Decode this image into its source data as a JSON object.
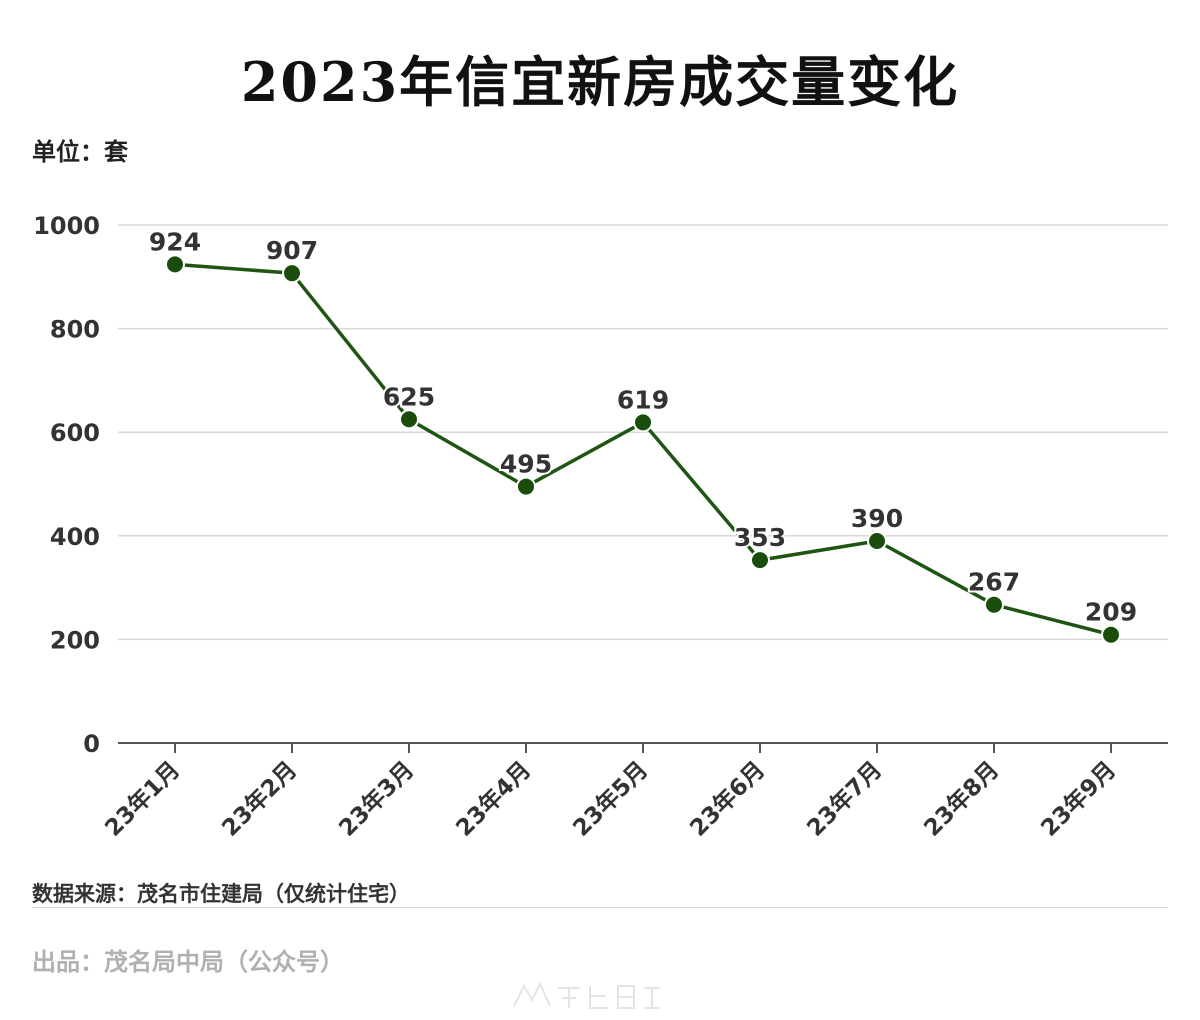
{
  "header": {
    "title": "2023年信宜新房成交量变化",
    "unit": "单位：套"
  },
  "footer": {
    "source": "数据来源：茂名市住建局（仅统计住宅）",
    "producer": "出品：茂名局中局（公众号）"
  },
  "colors": {
    "line": "#1f5512",
    "marker": "#1a4d0b",
    "grid": "#d9d9d9",
    "axis": "#555555",
    "label": "#333333"
  },
  "chart_data": {
    "type": "line",
    "categories": [
      "23年1月",
      "23年2月",
      "23年3月",
      "23年4月",
      "23年5月",
      "23年6月",
      "23年7月",
      "23年8月",
      "23年9月"
    ],
    "series": [
      {
        "values": [
          924,
          907,
          625,
          495,
          619,
          353,
          390,
          267,
          209
        ]
      }
    ],
    "ylim": [
      0,
      1000
    ],
    "yticks": [
      "0",
      "200",
      "400",
      "600",
      "800",
      "1000"
    ],
    "grid": true,
    "legend": "none"
  }
}
